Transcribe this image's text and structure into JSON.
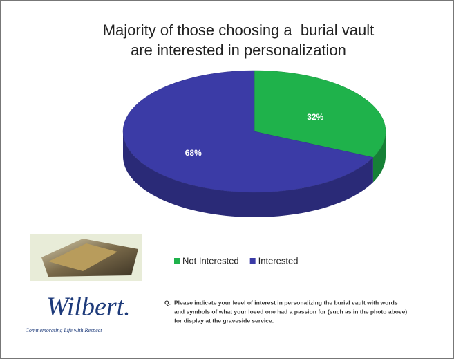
{
  "chart_data": {
    "type": "pie",
    "title": [
      "Majority of those choosing a  burial vault",
      "are interested in personalization"
    ],
    "categories": [
      "Not Interested",
      "Interested"
    ],
    "values": [
      32,
      68
    ],
    "value_labels": [
      "32%",
      "68%"
    ],
    "colors": [
      "#1fb24b",
      "#3b3ba6"
    ]
  },
  "logo": {
    "name": "Wilbert.",
    "tagline": "Commemorating Life with Respect"
  },
  "question": [
    "Q.",
    "Please indicate your level of interest in personalizing the burial vault with words",
    "and symbols of what your loved one had a passion for (such as in the photo above)",
    "for display at the graveside service."
  ]
}
